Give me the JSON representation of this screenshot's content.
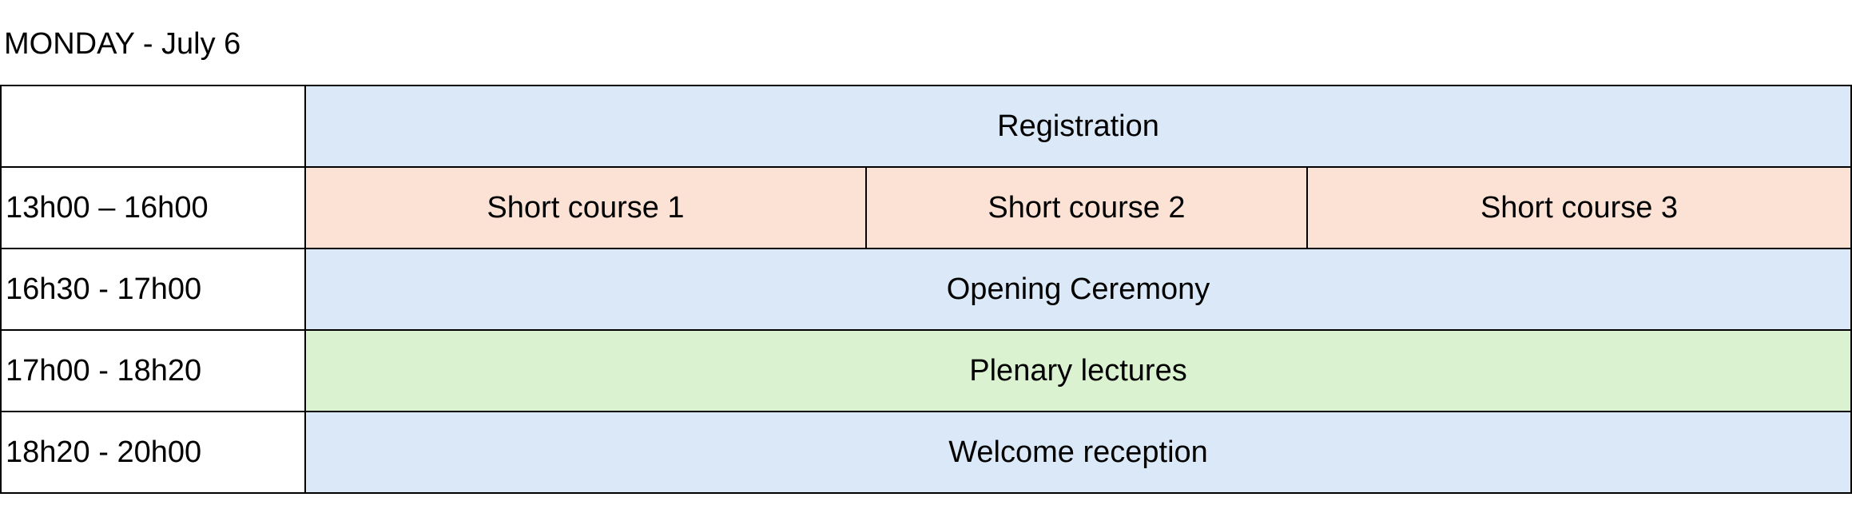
{
  "title": "MONDAY - July 6",
  "colors": {
    "registration": "#dae8f7",
    "short_course": "#fbe2d5",
    "plenary": "#daf2d0"
  },
  "rows": [
    {
      "time": "",
      "event": "Registration"
    },
    {
      "time": "13h00 – 16h00",
      "events": [
        "Short course 1",
        "Short course 2",
        "Short course 3"
      ]
    },
    {
      "time": "16h30 - 17h00",
      "event": "Opening Ceremony"
    },
    {
      "time": "17h00 - 18h20",
      "event": "Plenary lectures"
    },
    {
      "time": "18h20 - 20h00",
      "event": "Welcome reception"
    }
  ]
}
